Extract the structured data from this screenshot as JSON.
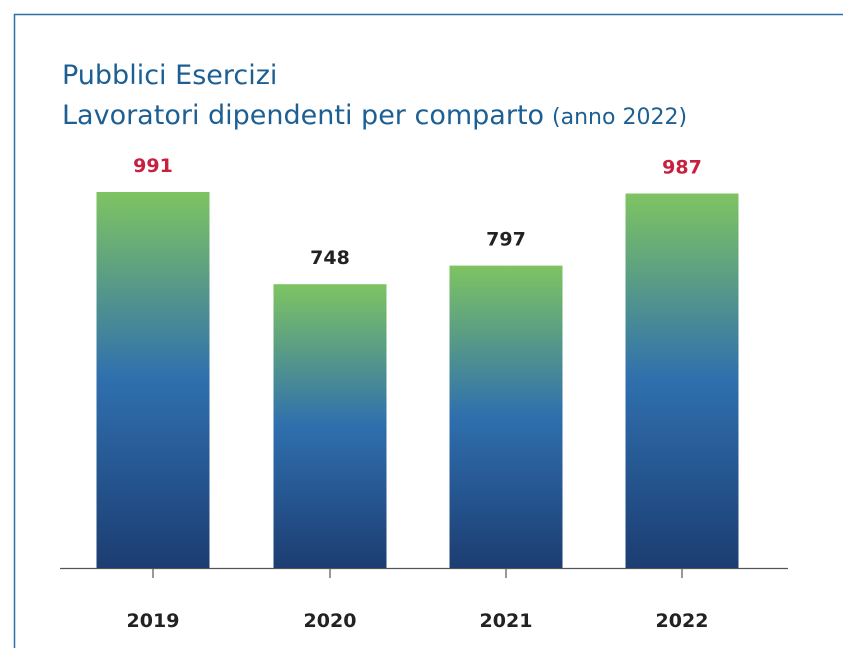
{
  "chart_data": {
    "type": "bar",
    "title": "Pubblici Esercizi",
    "subtitle": "Lavoratori dipendenti per comparto",
    "subtitle_note": "(anno 2022)",
    "categories": [
      "2019",
      "2020",
      "2021",
      "2022"
    ],
    "values": [
      991,
      748,
      797,
      987
    ],
    "label_colors": [
      "#c8203f",
      "#222222",
      "#222222",
      "#c8203f"
    ],
    "color": [
      "#7ec462",
      "#2f6fae",
      "#1c3d72"
    ]
  }
}
